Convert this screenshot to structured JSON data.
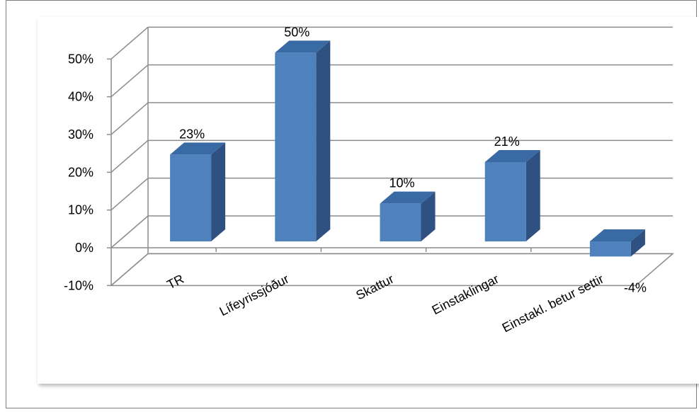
{
  "chart_data": {
    "type": "bar",
    "categories": [
      "TR",
      "Lífeyrissjóður",
      "Skattur",
      "Einstaklingar",
      "Einstakl. betur settir"
    ],
    "values": [
      23,
      50,
      10,
      21,
      -4
    ],
    "data_labels": [
      "23%",
      "50%",
      "10%",
      "21%",
      "-4%"
    ],
    "y_ticks": [
      -10,
      0,
      10,
      20,
      30,
      40,
      50
    ],
    "y_tick_labels": [
      "-10%",
      "0%",
      "10%",
      "20%",
      "30%",
      "40%",
      "50%"
    ],
    "ylim": [
      -10,
      50
    ],
    "grid": true,
    "three_d": true,
    "legend": "none",
    "bar_color": "#4f81bd",
    "bar_side_color": "#2e5181",
    "bar_top_color": "#3a6aa3"
  }
}
